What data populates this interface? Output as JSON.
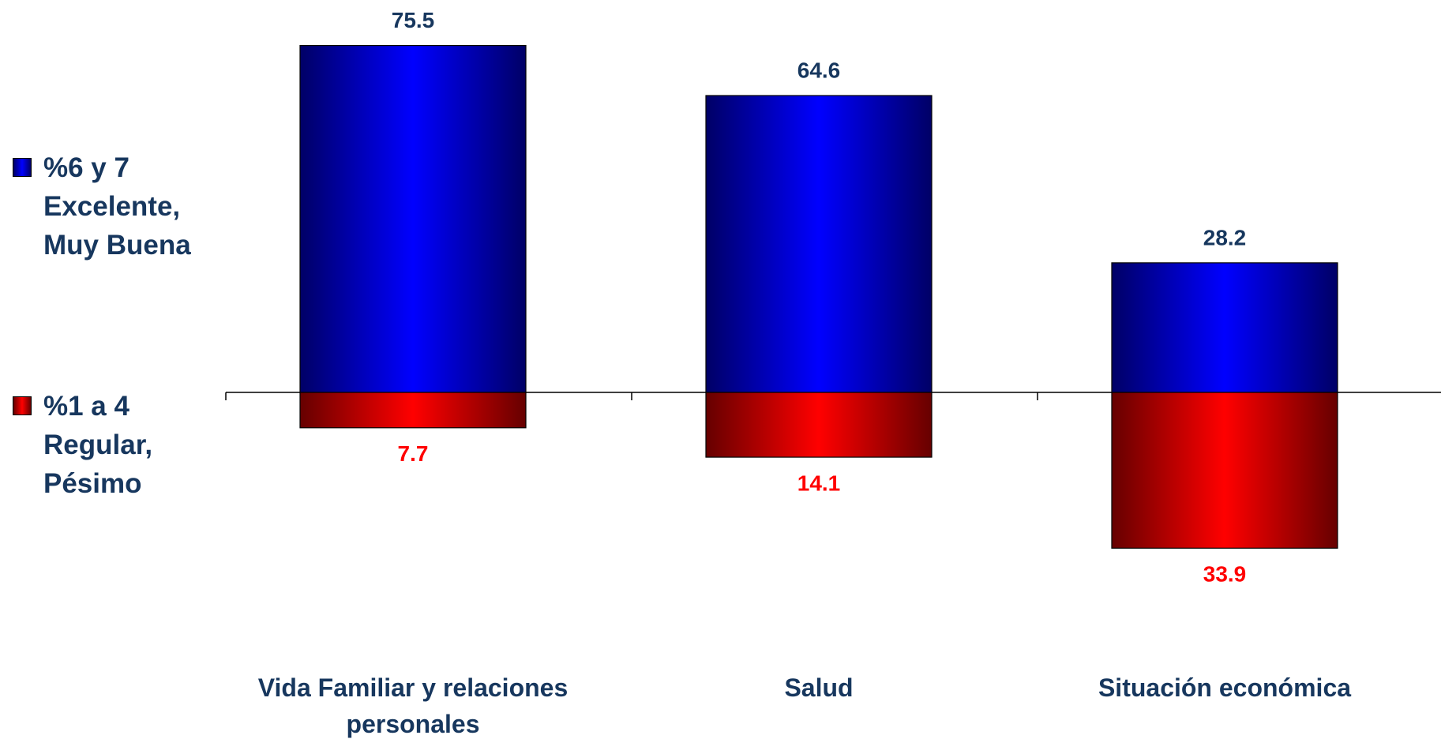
{
  "chart_data": {
    "type": "diverging_bar",
    "categories": [
      "Vida Familiar y relaciones personales",
      "Salud",
      "Situación económica"
    ],
    "series": [
      {
        "name": "%6 y 7 Excelente, Muy Buena",
        "color": "#0000ff",
        "label_color": "#17375e",
        "values": [
          75.5,
          64.6,
          28.2
        ]
      },
      {
        "name": "%1 a 4 Regular, Pésimo",
        "color": "#ff0000",
        "label_color": "#ff0000",
        "values": [
          7.7,
          14.1,
          33.9
        ]
      }
    ]
  }
}
